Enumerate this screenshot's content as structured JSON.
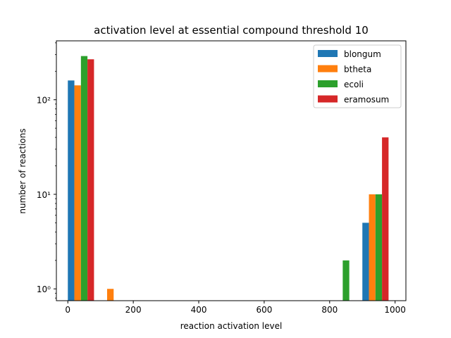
{
  "chart_data": {
    "type": "bar",
    "title": "activation level at essential compound threshold 10",
    "xlabel": "reaction activation level",
    "ylabel": "number of reactions",
    "xlim": [
      -35,
      1033
    ],
    "ylim": [
      0.75,
      420
    ],
    "yscale": "log",
    "x_ticks": [
      0,
      200,
      400,
      600,
      800,
      1000
    ],
    "y_ticks": [
      {
        "value": 1,
        "label": "10⁰"
      },
      {
        "value": 10,
        "label": "10¹"
      },
      {
        "value": 100,
        "label": "10²"
      }
    ],
    "legend_position": "top-right",
    "bins": [
      [
        0,
        100
      ],
      [
        100,
        200
      ],
      [
        800,
        900
      ],
      [
        900,
        1000
      ]
    ],
    "series": [
      {
        "name": "blongum",
        "color": "#1f77b4",
        "values": [
          160,
          0,
          0,
          5
        ]
      },
      {
        "name": "btheta",
        "color": "#ff7f0e",
        "values": [
          142,
          1,
          0,
          10
        ]
      },
      {
        "name": "ecoli",
        "color": "#2ca02c",
        "values": [
          290,
          0,
          2,
          10
        ]
      },
      {
        "name": "eramosum",
        "color": "#d62728",
        "values": [
          268,
          0,
          0,
          40
        ]
      }
    ]
  }
}
